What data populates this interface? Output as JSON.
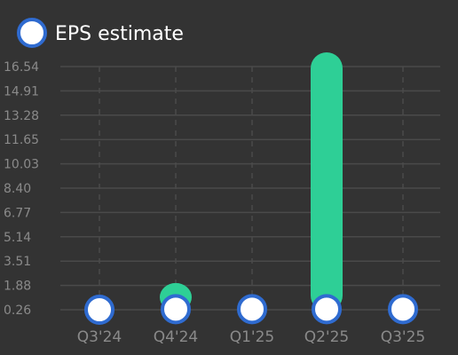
{
  "chart_data": {
    "type": "bar",
    "categories": [
      "Q3'24",
      "Q4'24",
      "Q1'25",
      "Q2'25",
      "Q3'25"
    ],
    "y_ticks": [
      "0.26",
      "1.88",
      "3.51",
      "5.14",
      "6.77",
      "8.40",
      "10.03",
      "11.65",
      "13.28",
      "14.91",
      "16.54"
    ],
    "ylim": [
      0.26,
      16.54
    ],
    "series": [
      {
        "name": "EPS estimate",
        "type": "scatter",
        "values": [
          0.26,
          0.3,
          0.3,
          0.3,
          0.3
        ]
      },
      {
        "type": "bar",
        "values": [
          null,
          1.1,
          null,
          16.54,
          null
        ]
      }
    ],
    "legend": {
      "position": "top-left",
      "entries": [
        "EPS estimate"
      ]
    },
    "grid": true,
    "colors": {
      "background": "#333333",
      "grid": "#4a4a4a",
      "bar": "#2ecf96",
      "marker_fill": "#ffffff",
      "marker_stroke": "#2f6bd0"
    }
  }
}
